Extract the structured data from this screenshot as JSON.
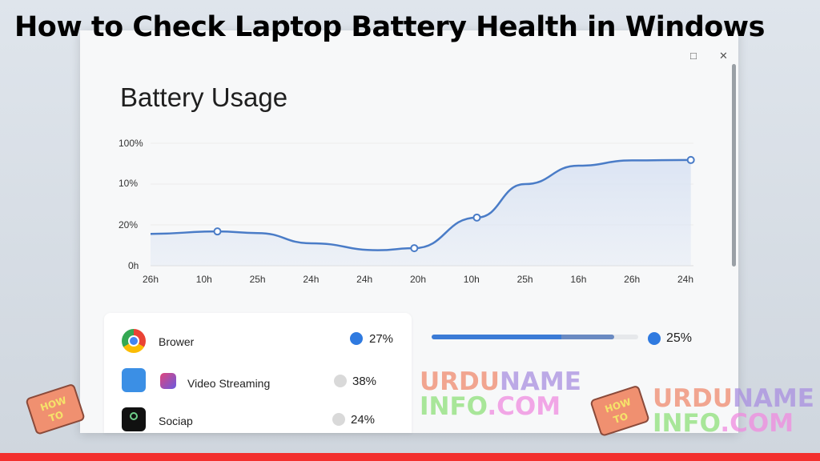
{
  "headline": "How to Check Laptop Battery Health in Windows",
  "window": {
    "title": "Battery Usage",
    "controls": {
      "minimize": "–",
      "maximize": "□",
      "close": "✕"
    }
  },
  "chart_data": {
    "type": "area",
    "title": "Battery Usage",
    "categories": [
      "26h",
      "10h",
      "25h",
      "24h",
      "24h",
      "20h",
      "10h",
      "25h",
      "16h",
      "26h",
      "24h"
    ],
    "y_tick_labels": [
      "0h",
      "20%",
      "10%",
      "100%"
    ],
    "note_y_units": "tick-level index (0 = 0h, 1 = 20%, 2 = 10%, 3 = 100%)",
    "line": [
      [
        0,
        0.78
      ],
      [
        1.25,
        0.84
      ],
      [
        2,
        0.8
      ],
      [
        3,
        0.55
      ],
      [
        4.25,
        0.38
      ],
      [
        4.93,
        0.43
      ],
      [
        6.1,
        1.18
      ],
      [
        7,
        2.0
      ],
      [
        8,
        2.45
      ],
      [
        9,
        2.58
      ],
      [
        10.1,
        2.59
      ]
    ],
    "markers": [
      [
        1.25,
        0.84
      ],
      [
        4.93,
        0.43
      ],
      [
        6.1,
        1.18
      ],
      [
        10.1,
        2.59
      ]
    ],
    "ylim": [
      0,
      3
    ],
    "grid": true,
    "color": "#4a7cc7",
    "fill": "#dbe4f3"
  },
  "apps": [
    {
      "name": "Brower",
      "percent": "27%",
      "icon": "chrome-icon",
      "dot_color": "#2f7ae0"
    },
    {
      "name": "Video Streaming",
      "percent": "38%",
      "icon": "video-streaming-icon",
      "dot_color": "#d9d9d9"
    },
    {
      "name": "Sociap",
      "percent": "24%",
      "icon": "social-app-icon",
      "dot_color": "#d9d9d9"
    }
  ],
  "summary": {
    "percent": "25%",
    "bar_fill": 0.63,
    "bar_secondary": 0.26,
    "dot_color": "#2f7ae0"
  },
  "watermark": {
    "line1": "URDUNAME",
    "line2": "INFO.COM",
    "book": "HOW TO"
  }
}
